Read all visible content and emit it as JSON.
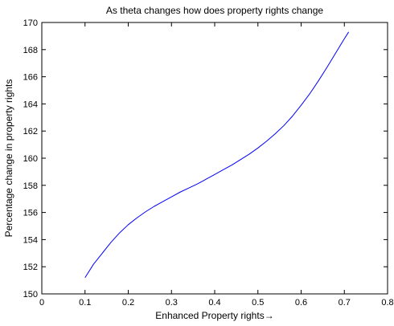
{
  "chart_data": {
    "type": "line",
    "title": "As theta changes how does property rights change",
    "xlabel": "Enhanced Property rights→",
    "ylabel": "Percentage change in property rights",
    "xlim": [
      0,
      0.8
    ],
    "ylim": [
      150,
      170
    ],
    "xticks": [
      0,
      0.1,
      0.2,
      0.3,
      0.4,
      0.5,
      0.6,
      0.7,
      0.8
    ],
    "yticks": [
      150,
      152,
      154,
      156,
      158,
      160,
      162,
      164,
      166,
      168,
      170
    ],
    "grid": false,
    "line_color": "#0000ff",
    "series": [
      {
        "x": [
          0.1,
          0.12,
          0.14,
          0.16,
          0.18,
          0.2,
          0.22,
          0.24,
          0.26,
          0.28,
          0.3,
          0.32,
          0.34,
          0.36,
          0.38,
          0.4,
          0.42,
          0.44,
          0.46,
          0.48,
          0.5,
          0.52,
          0.54,
          0.56,
          0.58,
          0.6,
          0.62,
          0.64,
          0.66,
          0.68,
          0.7,
          0.71
        ],
        "y": [
          151.2,
          152.2,
          153.0,
          153.8,
          154.5,
          155.1,
          155.6,
          156.05,
          156.45,
          156.8,
          157.15,
          157.5,
          157.8,
          158.1,
          158.45,
          158.8,
          159.15,
          159.5,
          159.9,
          160.3,
          160.75,
          161.25,
          161.8,
          162.4,
          163.1,
          163.9,
          164.75,
          165.7,
          166.7,
          167.75,
          168.8,
          169.3
        ]
      }
    ]
  }
}
